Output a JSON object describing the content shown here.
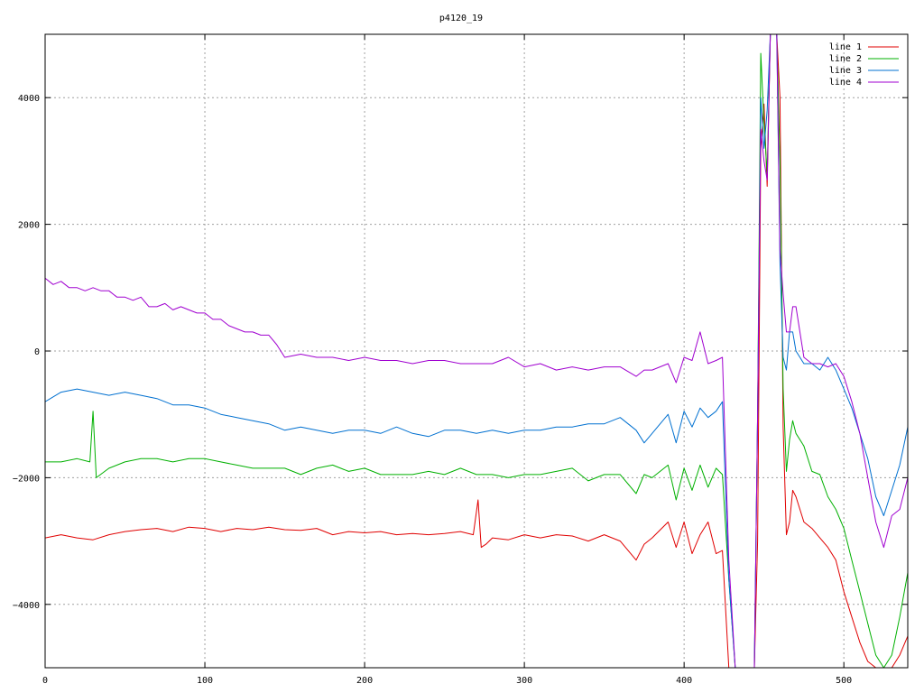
{
  "chart_data": {
    "type": "line",
    "title": "p4120_19",
    "xlabel": "",
    "ylabel": "",
    "xlim": [
      0,
      540
    ],
    "ylim": [
      -5000,
      5000
    ],
    "x_ticks": [
      0,
      100,
      200,
      300,
      400,
      500
    ],
    "y_ticks": [
      -4000,
      -2000,
      0,
      2000,
      4000
    ],
    "y_tick_labels": [
      "−4000",
      "−2000",
      "0",
      "2000",
      "4000"
    ],
    "grid": true,
    "legend_position": "top-right",
    "series": [
      {
        "name": "line 1",
        "color": "#e00000",
        "x": [
          0,
          10,
          20,
          30,
          40,
          50,
          60,
          70,
          80,
          90,
          100,
          110,
          120,
          130,
          140,
          150,
          160,
          170,
          180,
          190,
          200,
          210,
          220,
          230,
          240,
          250,
          260,
          268,
          271,
          273,
          276,
          280,
          290,
          300,
          310,
          320,
          330,
          340,
          350,
          360,
          370,
          375,
          380,
          390,
          395,
          400,
          405,
          410,
          415,
          420,
          424,
          428,
          432,
          436,
          440,
          444,
          446,
          448,
          450,
          452,
          454,
          456,
          458,
          460,
          462,
          464,
          466,
          468,
          470,
          475,
          480,
          485,
          490,
          495,
          500,
          505,
          510,
          515,
          520,
          525,
          530,
          535,
          540
        ],
        "y": [
          -2950,
          -2900,
          -2950,
          -2980,
          -2900,
          -2850,
          -2820,
          -2800,
          -2850,
          -2780,
          -2800,
          -2850,
          -2800,
          -2820,
          -2780,
          -2820,
          -2830,
          -2800,
          -2900,
          -2850,
          -2870,
          -2850,
          -2900,
          -2880,
          -2900,
          -2880,
          -2850,
          -2900,
          -2350,
          -3100,
          -3050,
          -2950,
          -2980,
          -2900,
          -2950,
          -2900,
          -2920,
          -3000,
          -2900,
          -3000,
          -3300,
          -3050,
          -2950,
          -2700,
          -3100,
          -2700,
          -3200,
          -2900,
          -2700,
          -3200,
          -3150,
          -5000,
          -5000,
          -5000,
          -5000,
          -5000,
          -3000,
          3200,
          3900,
          2600,
          5000,
          5000,
          5000,
          4000,
          -1200,
          -2900,
          -2700,
          -2200,
          -2300,
          -2700,
          -2800,
          -2950,
          -3100,
          -3300,
          -3800,
          -4200,
          -4600,
          -4900,
          -5000,
          -5000,
          -5000,
          -4800,
          -4500
        ]
      },
      {
        "name": "line 2",
        "color": "#00b000",
        "x": [
          0,
          10,
          20,
          28,
          30,
          32,
          40,
          50,
          60,
          70,
          80,
          90,
          100,
          110,
          120,
          130,
          140,
          150,
          160,
          170,
          180,
          190,
          200,
          210,
          220,
          230,
          240,
          250,
          260,
          270,
          280,
          290,
          300,
          310,
          320,
          330,
          340,
          350,
          360,
          370,
          375,
          380,
          390,
          395,
          400,
          405,
          410,
          415,
          420,
          424,
          428,
          432,
          436,
          440,
          444,
          446,
          448,
          450,
          452,
          454,
          456,
          458,
          460,
          462,
          464,
          466,
          468,
          470,
          475,
          480,
          485,
          490,
          495,
          500,
          505,
          510,
          515,
          520,
          525,
          530,
          535,
          540
        ],
        "y": [
          -1750,
          -1750,
          -1700,
          -1750,
          -950,
          -2000,
          -1850,
          -1750,
          -1700,
          -1700,
          -1750,
          -1700,
          -1700,
          -1750,
          -1800,
          -1850,
          -1850,
          -1850,
          -1950,
          -1850,
          -1800,
          -1900,
          -1850,
          -1950,
          -1950,
          -1950,
          -1900,
          -1950,
          -1850,
          -1950,
          -1950,
          -2000,
          -1950,
          -1950,
          -1900,
          -1850,
          -2050,
          -1950,
          -1950,
          -2250,
          -1950,
          -2000,
          -1800,
          -2350,
          -1850,
          -2200,
          -1800,
          -2150,
          -1850,
          -1950,
          -3600,
          -5000,
          -5000,
          -5000,
          -5000,
          -1000,
          4700,
          3600,
          2800,
          5000,
          5000,
          5000,
          3000,
          -600,
          -1900,
          -1400,
          -1100,
          -1300,
          -1500,
          -1900,
          -1950,
          -2300,
          -2500,
          -2800,
          -3300,
          -3800,
          -4300,
          -4800,
          -5000,
          -4800,
          -4200,
          -3500
        ]
      },
      {
        "name": "line 3",
        "color": "#0070d0",
        "x": [
          0,
          10,
          20,
          30,
          40,
          50,
          60,
          70,
          80,
          90,
          100,
          110,
          120,
          130,
          140,
          150,
          160,
          170,
          180,
          190,
          200,
          210,
          220,
          230,
          240,
          250,
          260,
          270,
          280,
          290,
          300,
          310,
          320,
          330,
          340,
          350,
          360,
          370,
          375,
          380,
          390,
          395,
          400,
          405,
          410,
          415,
          420,
          424,
          428,
          432,
          436,
          440,
          444,
          446,
          448,
          450,
          452,
          454,
          456,
          458,
          460,
          462,
          464,
          466,
          468,
          470,
          475,
          480,
          485,
          490,
          495,
          500,
          505,
          510,
          515,
          520,
          525,
          530,
          535,
          540
        ],
        "y": [
          -800,
          -650,
          -600,
          -650,
          -700,
          -650,
          -700,
          -750,
          -850,
          -850,
          -900,
          -1000,
          -1050,
          -1100,
          -1150,
          -1250,
          -1200,
          -1250,
          -1300,
          -1250,
          -1250,
          -1300,
          -1200,
          -1300,
          -1350,
          -1250,
          -1250,
          -1300,
          -1250,
          -1300,
          -1250,
          -1250,
          -1200,
          -1200,
          -1150,
          -1150,
          -1050,
          -1250,
          -1450,
          -1300,
          -1000,
          -1450,
          -950,
          -1200,
          -900,
          -1050,
          -950,
          -800,
          -3600,
          -5000,
          -5000,
          -5000,
          -5000,
          -1000,
          4000,
          3200,
          3800,
          5000,
          5000,
          5000,
          1400,
          -100,
          -300,
          300,
          300,
          0,
          -200,
          -200,
          -300,
          -100,
          -300,
          -600,
          -900,
          -1300,
          -1700,
          -2300,
          -2600,
          -2200,
          -1800,
          -1200
        ]
      },
      {
        "name": "line 4",
        "color": "#a000d0",
        "x": [
          0,
          5,
          10,
          15,
          20,
          25,
          30,
          35,
          40,
          45,
          50,
          55,
          60,
          65,
          70,
          75,
          80,
          85,
          90,
          95,
          100,
          105,
          110,
          115,
          120,
          125,
          130,
          135,
          140,
          145,
          150,
          160,
          170,
          180,
          190,
          200,
          210,
          220,
          230,
          240,
          250,
          260,
          270,
          280,
          290,
          300,
          310,
          320,
          330,
          340,
          350,
          360,
          370,
          375,
          380,
          390,
          395,
          400,
          405,
          410,
          415,
          420,
          424,
          428,
          432,
          436,
          440,
          444,
          446,
          448,
          450,
          452,
          454,
          456,
          458,
          460,
          462,
          464,
          466,
          468,
          470,
          475,
          480,
          485,
          490,
          495,
          500,
          505,
          510,
          515,
          520,
          525,
          530,
          535,
          540
        ],
        "y": [
          1150,
          1050,
          1100,
          1000,
          1000,
          950,
          1000,
          950,
          950,
          850,
          850,
          800,
          850,
          700,
          700,
          750,
          650,
          700,
          650,
          600,
          600,
          500,
          500,
          400,
          350,
          300,
          300,
          250,
          250,
          100,
          -100,
          -50,
          -100,
          -100,
          -150,
          -100,
          -150,
          -150,
          -200,
          -150,
          -150,
          -200,
          -200,
          -200,
          -100,
          -250,
          -200,
          -300,
          -250,
          -300,
          -250,
          -250,
          -400,
          -300,
          -300,
          -200,
          -500,
          -100,
          -150,
          300,
          -200,
          -150,
          -100,
          -3300,
          -5000,
          -5000,
          -5000,
          -5000,
          -1000,
          3500,
          3000,
          2700,
          5000,
          5000,
          5000,
          1600,
          900,
          300,
          300,
          700,
          700,
          -100,
          -200,
          -200,
          -250,
          -200,
          -400,
          -800,
          -1300,
          -2000,
          -2700,
          -3100,
          -2600,
          -2500,
          -2000
        ]
      }
    ]
  }
}
